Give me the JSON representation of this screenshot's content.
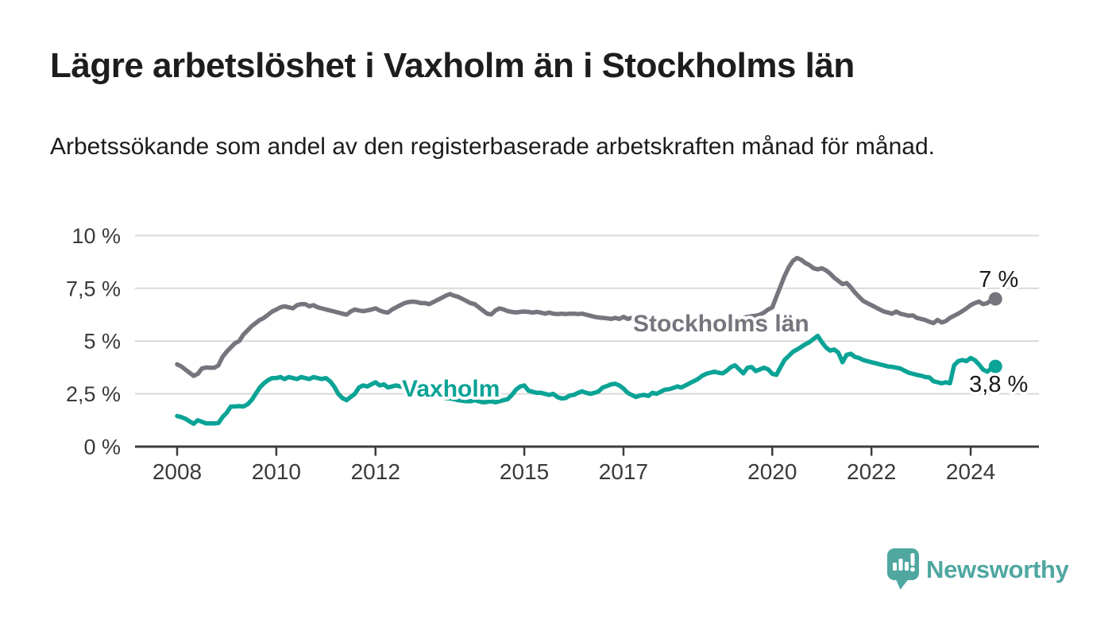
{
  "header": {
    "title": "Lägre arbetslöshet i Vaxholm än i Stockholms län",
    "subtitle": "Arbetssökande som andel av den registerbaserade arbetskraften månad för månad."
  },
  "chart_data": {
    "type": "line",
    "title": "Lägre arbetslöshet i Vaxholm än i Stockholms län",
    "xlabel": "",
    "ylabel": "",
    "x_start": {
      "year": 2008,
      "month": 1
    },
    "x_end": {
      "year": 2024,
      "month": 7
    },
    "points_per_year": 12,
    "grid": true,
    "ylim": [
      0,
      10
    ],
    "y_ticks": [
      {
        "value": 0,
        "label": "0 %"
      },
      {
        "value": 2.5,
        "label": "2,5 %"
      },
      {
        "value": 5,
        "label": "5 %"
      },
      {
        "value": 7.5,
        "label": "7,5 %"
      },
      {
        "value": 10,
        "label": "10 %"
      }
    ],
    "x_ticks": [
      {
        "year": 2008,
        "label": "2008"
      },
      {
        "year": 2010,
        "label": "2010"
      },
      {
        "year": 2012,
        "label": "2012"
      },
      {
        "year": 2015,
        "label": "2015"
      },
      {
        "year": 2017,
        "label": "2017"
      },
      {
        "year": 2020,
        "label": "2020"
      },
      {
        "year": 2022,
        "label": "2022"
      },
      {
        "year": 2024,
        "label": "2024"
      }
    ],
    "series": [
      {
        "name": "Stockholms län",
        "color": "#76757e",
        "end_label": "7 %",
        "end_label_position": "above",
        "values": [
          3.9,
          3.8,
          3.65,
          3.5,
          3.35,
          3.45,
          3.7,
          3.75,
          3.74,
          3.74,
          3.85,
          4.25,
          4.5,
          4.7,
          4.9,
          5.0,
          5.3,
          5.5,
          5.7,
          5.85,
          6.0,
          6.1,
          6.25,
          6.4,
          6.5,
          6.6,
          6.65,
          6.6,
          6.55,
          6.7,
          6.75,
          6.75,
          6.65,
          6.7,
          6.6,
          6.55,
          6.5,
          6.45,
          6.4,
          6.35,
          6.3,
          6.25,
          6.4,
          6.5,
          6.45,
          6.42,
          6.45,
          6.5,
          6.55,
          6.45,
          6.38,
          6.35,
          6.5,
          6.6,
          6.7,
          6.8,
          6.85,
          6.87,
          6.85,
          6.8,
          6.8,
          6.75,
          6.85,
          6.95,
          7.05,
          7.15,
          7.23,
          7.15,
          7.1,
          7.0,
          6.9,
          6.8,
          6.75,
          6.6,
          6.45,
          6.3,
          6.26,
          6.45,
          6.55,
          6.5,
          6.42,
          6.38,
          6.36,
          6.38,
          6.4,
          6.38,
          6.35,
          6.38,
          6.35,
          6.3,
          6.35,
          6.3,
          6.28,
          6.3,
          6.28,
          6.3,
          6.3,
          6.28,
          6.3,
          6.25,
          6.2,
          6.15,
          6.12,
          6.1,
          6.08,
          6.05,
          6.1,
          6.05,
          6.15,
          6.05,
          6.1,
          6.0,
          5.95,
          5.95,
          5.98,
          5.95,
          5.9,
          5.92,
          5.9,
          5.88,
          5.88,
          5.85,
          5.82,
          5.8,
          5.78,
          5.8,
          5.85,
          5.82,
          5.8,
          5.85,
          5.88,
          5.9,
          5.95,
          5.98,
          6.0,
          6.05,
          6.08,
          6.1,
          6.15,
          6.18,
          6.2,
          6.25,
          6.35,
          6.5,
          6.6,
          7.1,
          7.6,
          8.1,
          8.5,
          8.8,
          8.94,
          8.85,
          8.7,
          8.6,
          8.45,
          8.4,
          8.45,
          8.35,
          8.2,
          8.0,
          7.85,
          7.7,
          7.75,
          7.55,
          7.3,
          7.1,
          6.9,
          6.8,
          6.7,
          6.6,
          6.5,
          6.4,
          6.35,
          6.3,
          6.4,
          6.3,
          6.25,
          6.2,
          6.22,
          6.1,
          6.05,
          6.0,
          5.92,
          5.85,
          6.0,
          5.88,
          5.95,
          6.1,
          6.2,
          6.3,
          6.42,
          6.55,
          6.7,
          6.8,
          6.87,
          6.75,
          6.8,
          6.95,
          7.0
        ]
      },
      {
        "name": "Vaxholm",
        "color": "#0aa396",
        "end_label": "3,8 %",
        "end_label_position": "below",
        "values": [
          1.45,
          1.4,
          1.32,
          1.2,
          1.08,
          1.25,
          1.18,
          1.1,
          1.1,
          1.1,
          1.12,
          1.4,
          1.6,
          1.9,
          1.9,
          1.92,
          1.9,
          2.0,
          2.2,
          2.5,
          2.8,
          3.0,
          3.15,
          3.25,
          3.25,
          3.3,
          3.2,
          3.3,
          3.25,
          3.2,
          3.3,
          3.25,
          3.2,
          3.3,
          3.25,
          3.2,
          3.25,
          3.1,
          2.85,
          2.5,
          2.3,
          2.2,
          2.35,
          2.5,
          2.8,
          2.9,
          2.85,
          2.95,
          3.05,
          2.9,
          2.95,
          2.8,
          2.85,
          2.9,
          2.85,
          2.8,
          2.75,
          2.7,
          2.65,
          2.6,
          2.55,
          2.5,
          2.45,
          2.4,
          2.35,
          2.3,
          2.28,
          2.25,
          2.2,
          2.18,
          2.15,
          2.15,
          2.2,
          2.15,
          2.1,
          2.12,
          2.15,
          2.1,
          2.15,
          2.2,
          2.25,
          2.45,
          2.7,
          2.85,
          2.9,
          2.65,
          2.6,
          2.55,
          2.55,
          2.5,
          2.45,
          2.5,
          2.35,
          2.28,
          2.3,
          2.42,
          2.45,
          2.55,
          2.62,
          2.55,
          2.5,
          2.55,
          2.62,
          2.8,
          2.87,
          2.95,
          2.98,
          2.9,
          2.75,
          2.55,
          2.45,
          2.35,
          2.42,
          2.45,
          2.4,
          2.55,
          2.5,
          2.6,
          2.7,
          2.72,
          2.78,
          2.85,
          2.8,
          2.9,
          3.0,
          3.1,
          3.2,
          3.35,
          3.45,
          3.5,
          3.55,
          3.5,
          3.47,
          3.6,
          3.77,
          3.85,
          3.66,
          3.47,
          3.74,
          3.77,
          3.58,
          3.66,
          3.74,
          3.66,
          3.45,
          3.4,
          3.77,
          4.11,
          4.3,
          4.49,
          4.6,
          4.72,
          4.85,
          4.95,
          5.1,
          5.25,
          4.95,
          4.7,
          4.55,
          4.6,
          4.45,
          4.0,
          4.35,
          4.4,
          4.25,
          4.2,
          4.1,
          4.05,
          4.0,
          3.95,
          3.9,
          3.85,
          3.8,
          3.78,
          3.74,
          3.7,
          3.6,
          3.5,
          3.45,
          3.4,
          3.36,
          3.3,
          3.28,
          3.1,
          3.05,
          3.0,
          3.05,
          3.0,
          3.85,
          4.05,
          4.1,
          4.05,
          4.2,
          4.1,
          3.9,
          3.65,
          3.55,
          3.7,
          3.8
        ]
      }
    ],
    "legend_position": "inline-labels"
  },
  "branding": {
    "name": "Newsworthy",
    "icon": "newsworthy-speech-bubble-bar-chart-icon",
    "color": "#4fa7a0"
  },
  "colors": {
    "background": "#ffffff",
    "grid": "#d9d9d9",
    "axis": "#3c3c3c",
    "axis_text": "#3a3a3a",
    "title_text": "#1d1d1b",
    "value_label_text": "#1a1a1a",
    "stockholm_line": "#76757e",
    "vaxholm_line": "#0aa396"
  }
}
